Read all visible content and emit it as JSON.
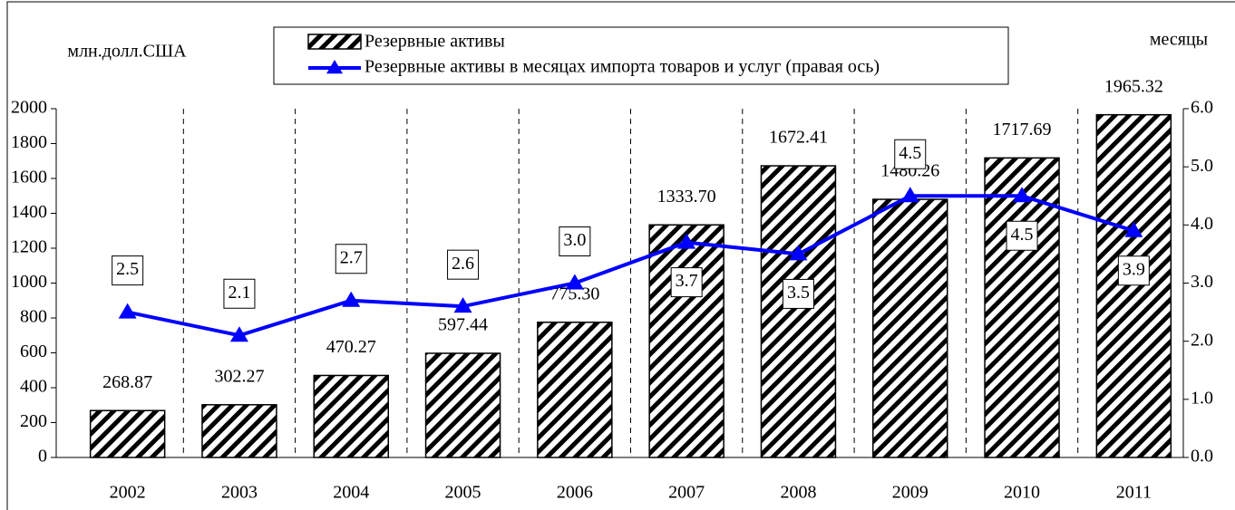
{
  "chart_data": {
    "type": "bar+line",
    "ylabel": "млн.долл.США",
    "y2label": "месяцы",
    "categories": [
      "2002",
      "2003",
      "2004",
      "2005",
      "2006",
      "2007",
      "2008",
      "2009",
      "2010",
      "2011"
    ],
    "series": [
      {
        "name": "Резервные активы",
        "type": "bar",
        "color": "#000000",
        "values": [
          268.87,
          302.27,
          470.27,
          597.44,
          775.3,
          1333.7,
          1672.41,
          1480.26,
          1717.69,
          1965.32
        ],
        "value_labels": [
          "268.87",
          "302.27",
          "470.27",
          "597.44",
          "775.30",
          "1333.70",
          "1672.41",
          "1480.26",
          "1717.69",
          "1965.32"
        ]
      },
      {
        "name": "Резервные активы в месяцах импорта товаров и услуг (правая ось)",
        "type": "line",
        "axis": "y2",
        "color": "#0000ff",
        "values": [
          2.5,
          2.1,
          2.7,
          2.6,
          3.0,
          3.7,
          3.5,
          4.5,
          4.5,
          3.9
        ],
        "value_labels": [
          "2.5",
          "2.1",
          "2.7",
          "2.6",
          "3.0",
          "3.7",
          "3.5",
          "4.5",
          "4.5",
          "3.9"
        ]
      }
    ],
    "ylim": [
      0,
      2000
    ],
    "yticks": [
      0,
      200,
      400,
      600,
      800,
      1000,
      1200,
      1400,
      1600,
      1800,
      2000
    ],
    "y2lim": [
      0,
      6
    ],
    "y2ticks": [
      {
        "value": 0,
        "label": "0.0"
      },
      {
        "value": 1,
        "label": "1.0"
      },
      {
        "value": 2,
        "label": "2.0"
      },
      {
        "value": 3,
        "label": "3.0"
      },
      {
        "value": 4,
        "label": "4.0"
      },
      {
        "value": 5,
        "label": "5.0"
      },
      {
        "value": 6,
        "label": "6.0"
      }
    ],
    "grid": true
  }
}
